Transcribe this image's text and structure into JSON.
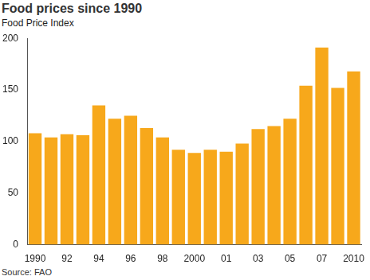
{
  "chart_data": {
    "type": "bar",
    "title": "Food prices since 1990",
    "subtitle": "Food Price Index",
    "source": "Source: FAO",
    "categories": [
      "1990",
      null,
      "92",
      null,
      "94",
      null,
      "96",
      null,
      "98",
      null,
      "2000",
      null,
      "01",
      null,
      "03",
      null,
      "05",
      null,
      "07",
      null,
      "2010"
    ],
    "values": [
      108,
      104,
      107,
      106,
      135,
      122,
      125,
      113,
      104,
      92,
      89,
      92,
      90,
      98,
      112,
      115,
      122,
      154,
      191,
      152,
      168
    ],
    "color": "#f7a81b",
    "ylim": [
      0,
      200
    ],
    "yticks": [
      0,
      50,
      100,
      150,
      200
    ],
    "grid": false
  }
}
